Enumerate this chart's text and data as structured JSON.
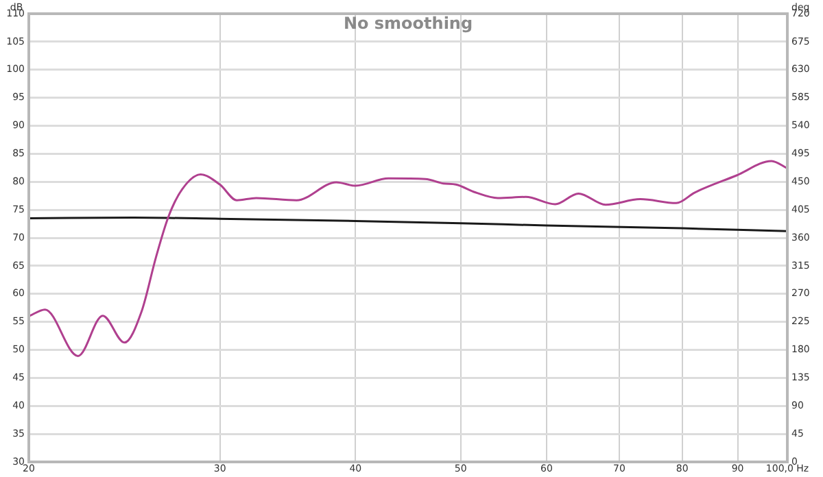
{
  "chart_data": {
    "type": "line",
    "title": "No smoothing",
    "ylabel": "dB",
    "y2label": "deg",
    "log": "x",
    "grid": true,
    "legend": false,
    "marker": "none",
    "line_style": "solid",
    "xlim": [
      20,
      100
    ],
    "xticks": [
      20,
      30,
      40,
      50,
      60,
      70,
      80,
      90,
      {
        "value": 100,
        "label": "100,0 Hz"
      }
    ],
    "ylim": [
      30,
      110
    ],
    "yticks": [
      30,
      35,
      40,
      45,
      50,
      55,
      60,
      65,
      70,
      75,
      80,
      85,
      90,
      95,
      100,
      105,
      110
    ],
    "y2lim": [
      0,
      720
    ],
    "y2ticks": [
      0,
      45,
      90,
      135,
      180,
      225,
      270,
      315,
      360,
      405,
      450,
      495,
      540,
      585,
      630,
      675,
      720
    ],
    "series": [
      {
        "color": "#b0408f",
        "x": [
          20,
          20.7,
          22.2,
          23.4,
          24.5,
          25.4,
          26.2,
          26.9,
          27.7,
          28.8,
          30,
          31.1,
          32.4,
          35.3,
          38.4,
          40,
          42.9,
          46.4,
          48.2,
          49.5,
          51.6,
          54.1,
          57.4,
          61.1,
          64.2,
          68,
          73.2,
          79,
          82.2,
          89.7,
          96.7,
          100
        ],
        "values": [
          56,
          57.2,
          48.9,
          56.1,
          51.3,
          56.8,
          66.6,
          73.8,
          78.7,
          81.3,
          79.5,
          76.7,
          77.1,
          76.7,
          79.9,
          79.3,
          80.6,
          80.5,
          79.7,
          79.5,
          78.1,
          77.1,
          77.3,
          76,
          77.9,
          75.9,
          76.9,
          76.2,
          78.1,
          81.1,
          83.7,
          82.4
        ]
      },
      {
        "color": "#1a1a1a",
        "x": [
          20,
          25,
          30,
          40,
          50,
          60,
          80,
          100
        ],
        "values": [
          73.5,
          73.6,
          73.4,
          73,
          72.6,
          72.2,
          71.7,
          71.2
        ]
      }
    ]
  }
}
